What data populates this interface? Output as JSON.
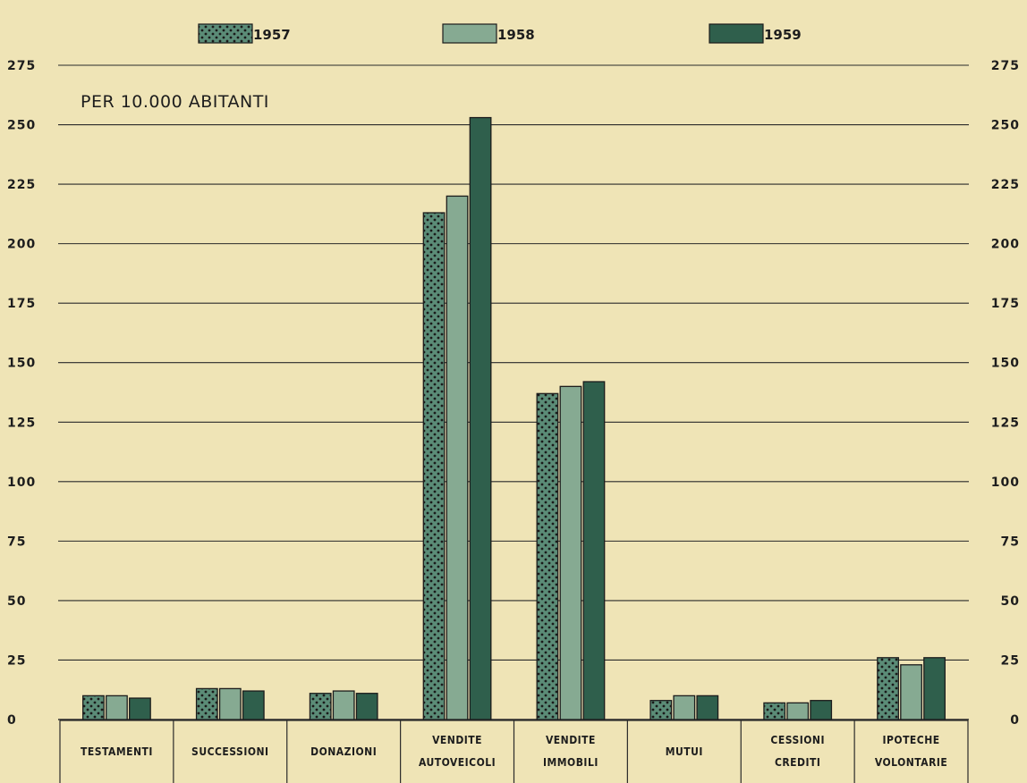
{
  "chart_data": {
    "type": "bar",
    "annotation": "PER 10.000 ABITANTI",
    "categories": [
      [
        "TESTAMENTI"
      ],
      [
        "SUCCESSIONI"
      ],
      [
        "DONAZIONI"
      ],
      [
        "VENDITE",
        "AUTOVEICOLI"
      ],
      [
        "VENDITE",
        "IMMOBILI"
      ],
      [
        "MUTUI"
      ],
      [
        "CESSIONI",
        "CREDITI"
      ],
      [
        "IPOTECHE",
        "VOLONTARIE"
      ]
    ],
    "series": [
      {
        "name": "1957",
        "pattern": "dotted",
        "color": "#5b8c77",
        "values": [
          10,
          13,
          11,
          213,
          137,
          8,
          7,
          26
        ]
      },
      {
        "name": "1958",
        "pattern": "solid",
        "color": "#86aa92",
        "values": [
          10,
          13,
          12,
          220,
          140,
          10,
          7,
          23
        ]
      },
      {
        "name": "1959",
        "pattern": "solid",
        "color": "#2f5f4c",
        "values": [
          9,
          12,
          11,
          253,
          142,
          10,
          8,
          26
        ]
      }
    ],
    "ylim": [
      0,
      275
    ],
    "y_ticks": [
      "0",
      "25",
      "50",
      "75",
      "100",
      "125",
      "150",
      "175",
      "200",
      "225",
      "250",
      "275"
    ],
    "y_tick_values": [
      0,
      25,
      50,
      75,
      100,
      125,
      150,
      175,
      200,
      225,
      250,
      275
    ],
    "grid": true,
    "legend_position": "top",
    "xlabel": "",
    "ylabel": ""
  },
  "colors": {
    "background": "#efe4b6",
    "grid": "#2a2a2a",
    "text": "#1d1d1d",
    "bar_outline": "#1c1c1c"
  }
}
